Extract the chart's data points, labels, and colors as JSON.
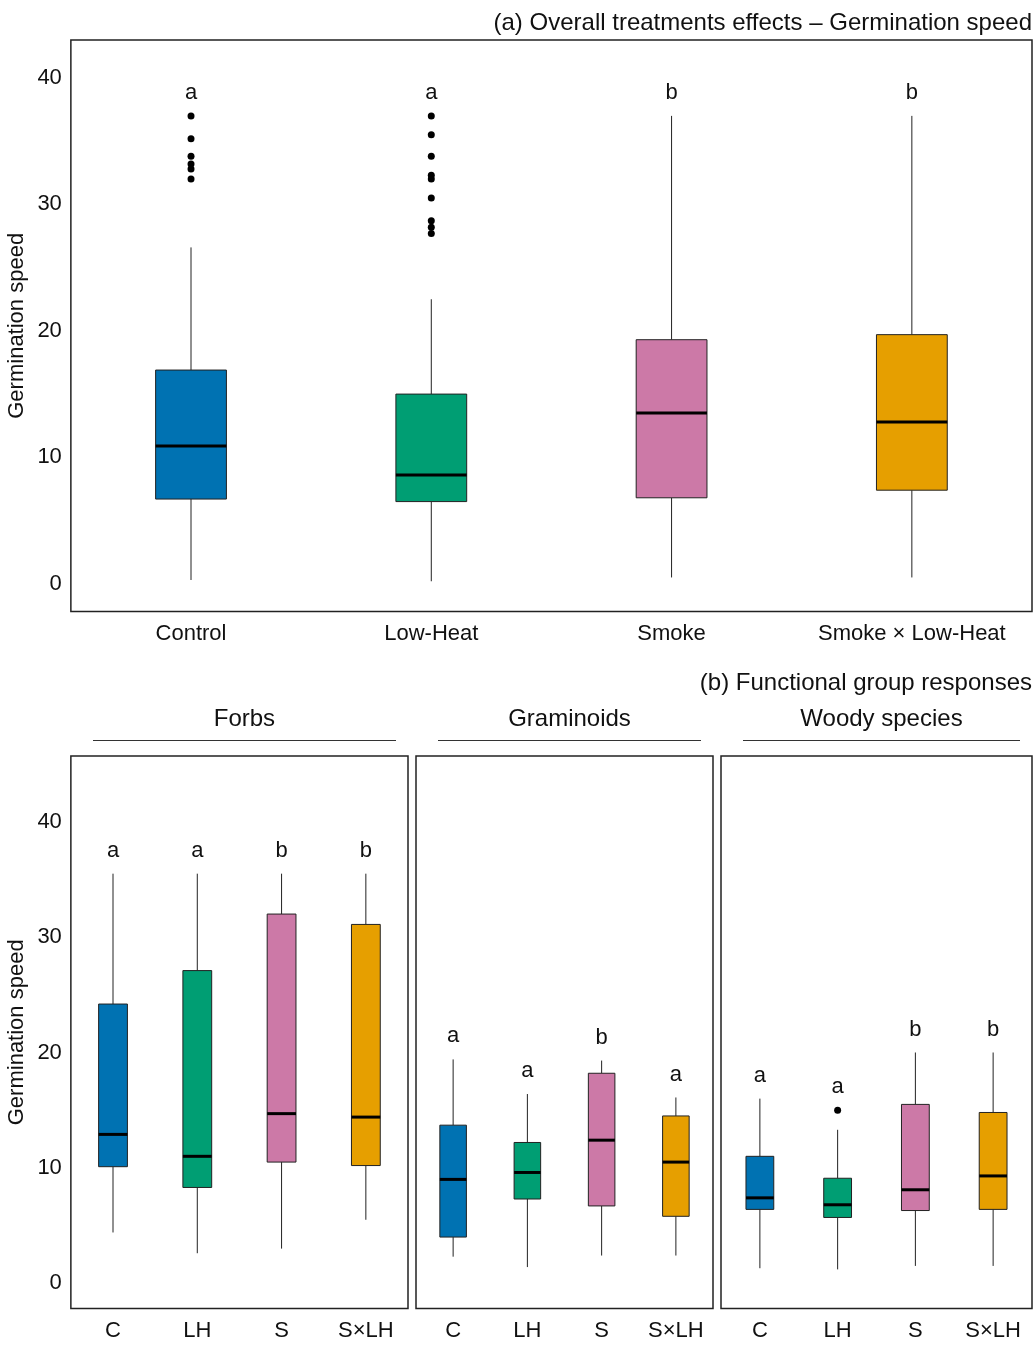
{
  "chart_data": [
    {
      "type": "box",
      "title": "(a) Overall treatments effects – Germination speed",
      "ylabel": "Germination speed",
      "categories": [
        "Control",
        "Low-Heat",
        "Smoke",
        "Smoke × Low-Heat"
      ],
      "colors": [
        "#0072b2",
        "#009e73",
        "#cc79a7",
        "#e69f00"
      ],
      "boxes": [
        {
          "low": 0.3,
          "q1": 6.7,
          "median": 10.9,
          "q3": 16.9,
          "high": 26.6,
          "outliers": [
            32,
            32.8,
            33.2,
            33.8,
            35.2,
            37
          ]
        },
        {
          "low": 0.2,
          "q1": 6.5,
          "median": 8.6,
          "q3": 15,
          "high": 22.5,
          "outliers": [
            27.7,
            28.2,
            28.7,
            30.5,
            32,
            32.3,
            33.8,
            35.5,
            37
          ]
        },
        {
          "low": 0.5,
          "q1": 6.8,
          "median": 13.5,
          "q3": 19.3,
          "high": 37
        },
        {
          "low": 0.5,
          "q1": 7.4,
          "median": 12.8,
          "q3": 19.7,
          "high": 37
        }
      ],
      "ylim": [
        -2.2,
        43
      ],
      "yticks": [
        0,
        10,
        20,
        30,
        40
      ],
      "grid": false,
      "legend": false,
      "annotations": [
        "a",
        "a",
        "b",
        "b"
      ]
    },
    {
      "type": "box",
      "subtitle": "Forbs",
      "ylabel": "Germination speed",
      "categories": [
        "C",
        "LH",
        "S",
        "S×LH"
      ],
      "colors": [
        "#0072b2",
        "#009e73",
        "#cc79a7",
        "#e69f00"
      ],
      "boxes": [
        {
          "low": 4.4,
          "q1": 10.1,
          "median": 12.9,
          "q3": 24.2,
          "high": 35.5
        },
        {
          "low": 2.6,
          "q1": 8.3,
          "median": 11,
          "q3": 27.1,
          "high": 35.5
        },
        {
          "low": 3,
          "q1": 10.5,
          "median": 14.7,
          "q3": 32,
          "high": 35.5
        },
        {
          "low": 5.5,
          "q1": 10.2,
          "median": 14.4,
          "q3": 31.1,
          "high": 35.5
        }
      ],
      "ylim": [
        -2.2,
        45.7
      ],
      "yticks": [
        0,
        10,
        20,
        30,
        40
      ],
      "grid": false,
      "legend": false,
      "annotations": [
        "a",
        "a",
        "b",
        "b"
      ]
    },
    {
      "type": "box",
      "subtitle": "Graminoids",
      "categories": [
        "C",
        "LH",
        "S",
        "S×LH"
      ],
      "colors": [
        "#0072b2",
        "#009e73",
        "#cc79a7",
        "#e69f00"
      ],
      "boxes": [
        {
          "low": 2.3,
          "q1": 4,
          "median": 9,
          "q3": 13.7,
          "high": 19.4
        },
        {
          "low": 1.4,
          "q1": 7.3,
          "median": 9.6,
          "q3": 12.2,
          "high": 16.4
        },
        {
          "low": 2.4,
          "q1": 6.7,
          "median": 12.4,
          "q3": 18.2,
          "high": 19.3
        },
        {
          "low": 2.4,
          "q1": 5.8,
          "median": 10.5,
          "q3": 14.5,
          "high": 16.1
        }
      ],
      "ylim": [
        -2.2,
        45.7
      ],
      "yticks": [
        0,
        10,
        20,
        30,
        40
      ],
      "tick_labels": "x",
      "grid": false,
      "legend": false,
      "annotations": [
        "a",
        "a",
        "b",
        "a"
      ]
    },
    {
      "type": "box",
      "title": "(b) Functional group responses",
      "subtitle": "Woody species",
      "categories": [
        "C",
        "LH",
        "S",
        "S×LH"
      ],
      "colors": [
        "#0072b2",
        "#009e73",
        "#cc79a7",
        "#e69f00"
      ],
      "boxes": [
        {
          "low": 1.3,
          "q1": 6.4,
          "median": 7.4,
          "q3": 11,
          "high": 16
        },
        {
          "low": 1.2,
          "q1": 5.7,
          "median": 6.8,
          "q3": 9.1,
          "high": 13.3,
          "outliers": [
            15
          ]
        },
        {
          "low": 1.5,
          "q1": 6.3,
          "median": 8.1,
          "q3": 15.5,
          "high": 20
        },
        {
          "low": 1.5,
          "q1": 6.4,
          "median": 9.3,
          "q3": 14.8,
          "high": 20
        }
      ],
      "ylim": [
        -2.2,
        45.7
      ],
      "yticks": [
        0,
        10,
        20,
        30,
        40
      ],
      "tick_labels": "x",
      "grid": false,
      "legend": false,
      "annotations": [
        "a",
        "a",
        "b",
        "b"
      ]
    }
  ]
}
